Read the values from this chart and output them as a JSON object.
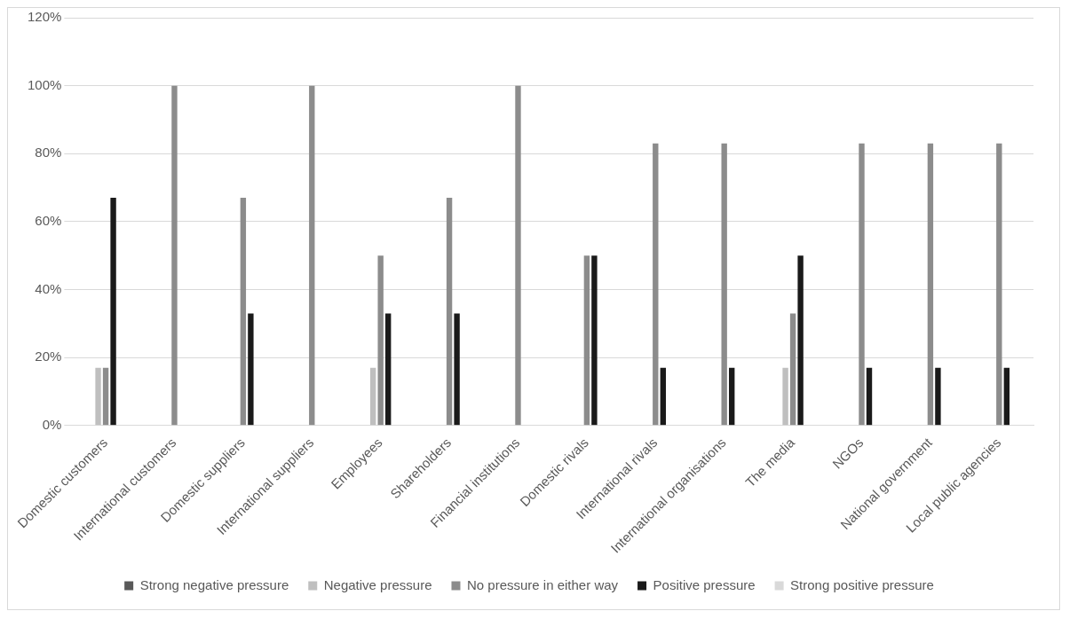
{
  "chart_data": {
    "type": "bar",
    "categories": [
      "Domestic customers",
      "International customers",
      "Domestic suppliers",
      "International suppliers",
      "Employees",
      "Shareholders",
      "Financial institutions",
      "Domestic rivals",
      "International rivals",
      "International organisations",
      "The media",
      "NGOs",
      "National government",
      "Local public agencies"
    ],
    "series": [
      {
        "name": "Strong negative pressure",
        "color": "#595959",
        "values": [
          0,
          0,
          0,
          0,
          0,
          0,
          0,
          0,
          0,
          0,
          0,
          0,
          0,
          0
        ]
      },
      {
        "name": "Negative pressure",
        "color": "#bfbfbf",
        "values": [
          17,
          0,
          0,
          0,
          17,
          0,
          0,
          0,
          0,
          0,
          17,
          0,
          0,
          0
        ]
      },
      {
        "name": "No pressure in either way",
        "color": "#8c8c8c",
        "values": [
          17,
          100,
          67,
          100,
          50,
          67,
          100,
          50,
          83,
          83,
          33,
          83,
          83,
          83
        ]
      },
      {
        "name": "Positive pressure",
        "color": "#1a1a1a",
        "values": [
          67,
          0,
          33,
          0,
          33,
          33,
          0,
          50,
          17,
          17,
          50,
          17,
          17,
          17
        ]
      },
      {
        "name": "Strong positive pressure",
        "color": "#d9d9d9",
        "values": [
          0,
          0,
          0,
          0,
          0,
          0,
          0,
          0,
          0,
          0,
          0,
          0,
          0,
          0
        ]
      }
    ],
    "ylim": [
      0,
      120
    ],
    "yticks": [
      {
        "value": 0,
        "label": "0%"
      },
      {
        "value": 20,
        "label": "20%"
      },
      {
        "value": 40,
        "label": "40%"
      },
      {
        "value": 60,
        "label": "60%"
      },
      {
        "value": 80,
        "label": "80%"
      },
      {
        "value": 100,
        "label": "100%"
      },
      {
        "value": 120,
        "label": "120%"
      }
    ],
    "grid": "y",
    "legend": "bottom"
  }
}
